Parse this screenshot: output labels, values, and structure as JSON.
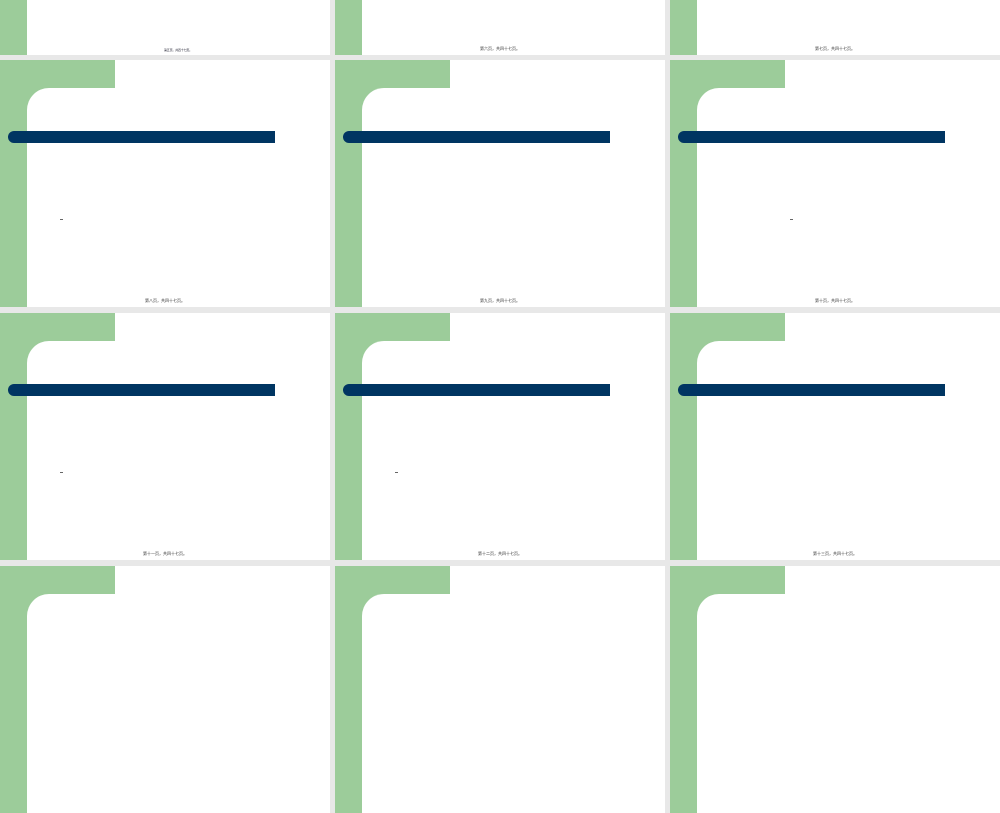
{
  "colors": {
    "accent_green": "#9ccc9a",
    "title_bar": "#003562",
    "background": "#e8e8e8"
  },
  "slides": [
    {
      "footer": "第五页，共四十七页。",
      "has_bar": false,
      "has_dash": false,
      "dense_text": true
    },
    {
      "footer": "第六页，共四十七页。",
      "has_bar": false,
      "has_dash": false
    },
    {
      "footer": "第七页，共四十七页。",
      "has_bar": false,
      "has_dash": false
    },
    {
      "footer": "第八页，共四十七页。",
      "has_bar": true,
      "has_dash": true
    },
    {
      "footer": "第九页，共四十七页。",
      "has_bar": true,
      "has_dash": false
    },
    {
      "footer": "第十页，共四十七页。",
      "has_bar": true,
      "has_dash": true
    },
    {
      "footer": "第十一页，共四十七页。",
      "has_bar": true,
      "has_dash": true
    },
    {
      "footer": "第十二页，共四十七页。",
      "has_bar": true,
      "has_dash": true
    },
    {
      "footer": "第十三页，共四十七页。",
      "has_bar": true,
      "has_dash": false
    },
    {
      "footer": "",
      "has_bar": false,
      "has_dash": false
    },
    {
      "footer": "",
      "has_bar": false,
      "has_dash": false
    },
    {
      "footer": "",
      "has_bar": false,
      "has_dash": false
    }
  ]
}
